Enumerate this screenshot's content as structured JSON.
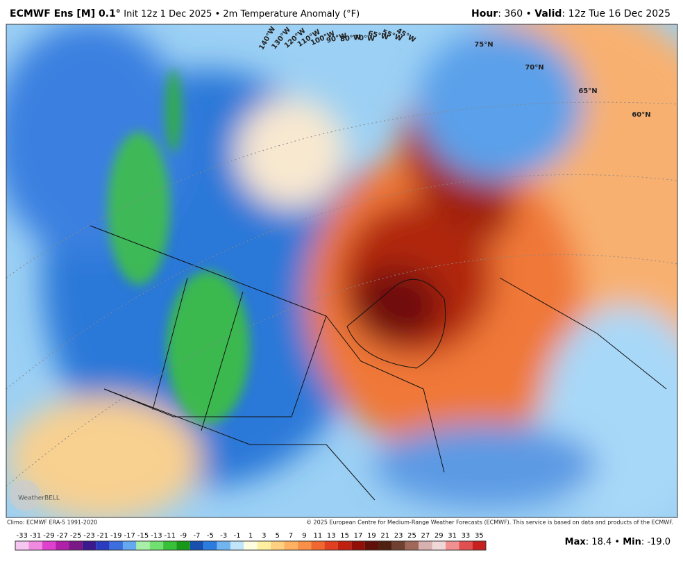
{
  "header": {
    "model": "ECMWF Ens [M] 0.1°",
    "subtitle": "Init 12z 1 Dec 2025 • 2m Temperature Anomaly (°F)",
    "hour_label": "Hour",
    "hour_value": ": 360 •",
    "valid_label": "Valid",
    "valid_value": ": 12z Tue 16 Dec 2025"
  },
  "map": {
    "longitudes": [
      "140°W",
      "130°W",
      "120°W",
      "110°W",
      "100°W",
      "90°W",
      "80°W",
      "70°W",
      "65°W",
      "55°W",
      "45°W"
    ],
    "latitudes": [
      "75°N",
      "70°N",
      "65°N",
      "60°N"
    ],
    "watermark": "WeatherBELL"
  },
  "footer": {
    "climo": "Climo: ECMWF ERA-5 1991-2020",
    "copyright": "© 2025 European Centre for Medium-Range Weather Forecasts (ECMWF). This service is based on data and products of the ECMWF."
  },
  "colorbar": {
    "labels": [
      -33,
      -31,
      -29,
      -27,
      -25,
      -23,
      -21,
      -19,
      -17,
      -15,
      -13,
      -11,
      -9,
      -7,
      -5,
      -3,
      -1,
      1,
      3,
      5,
      7,
      9,
      11,
      13,
      15,
      17,
      19,
      21,
      23,
      25,
      27,
      29,
      31,
      33,
      35
    ],
    "colors": [
      "#f7c6f0",
      "#f08ae0",
      "#e040d0",
      "#b020a8",
      "#7a1888",
      "#3a1a8c",
      "#2a3cc0",
      "#3c6ee0",
      "#64a8f0",
      "#a8f0a8",
      "#70e070",
      "#38c038",
      "#189818",
      "#1850b0",
      "#2c7ce0",
      "#70b4f0",
      "#c0e4fa",
      "#fffde0",
      "#fff0a0",
      "#ffd080",
      "#ffb060",
      "#f89048",
      "#f06830",
      "#e04020",
      "#c02010",
      "#901008",
      "#601008",
      "#502010",
      "#704030",
      "#a06858",
      "#d8b0b0",
      "#f0d8d8",
      "#f09090",
      "#e05050",
      "#c82020"
    ]
  },
  "stats": {
    "max_label": "Max",
    "max_value": ": 18.4 •",
    "min_label": "Min",
    "min_value": ": -19.0"
  }
}
